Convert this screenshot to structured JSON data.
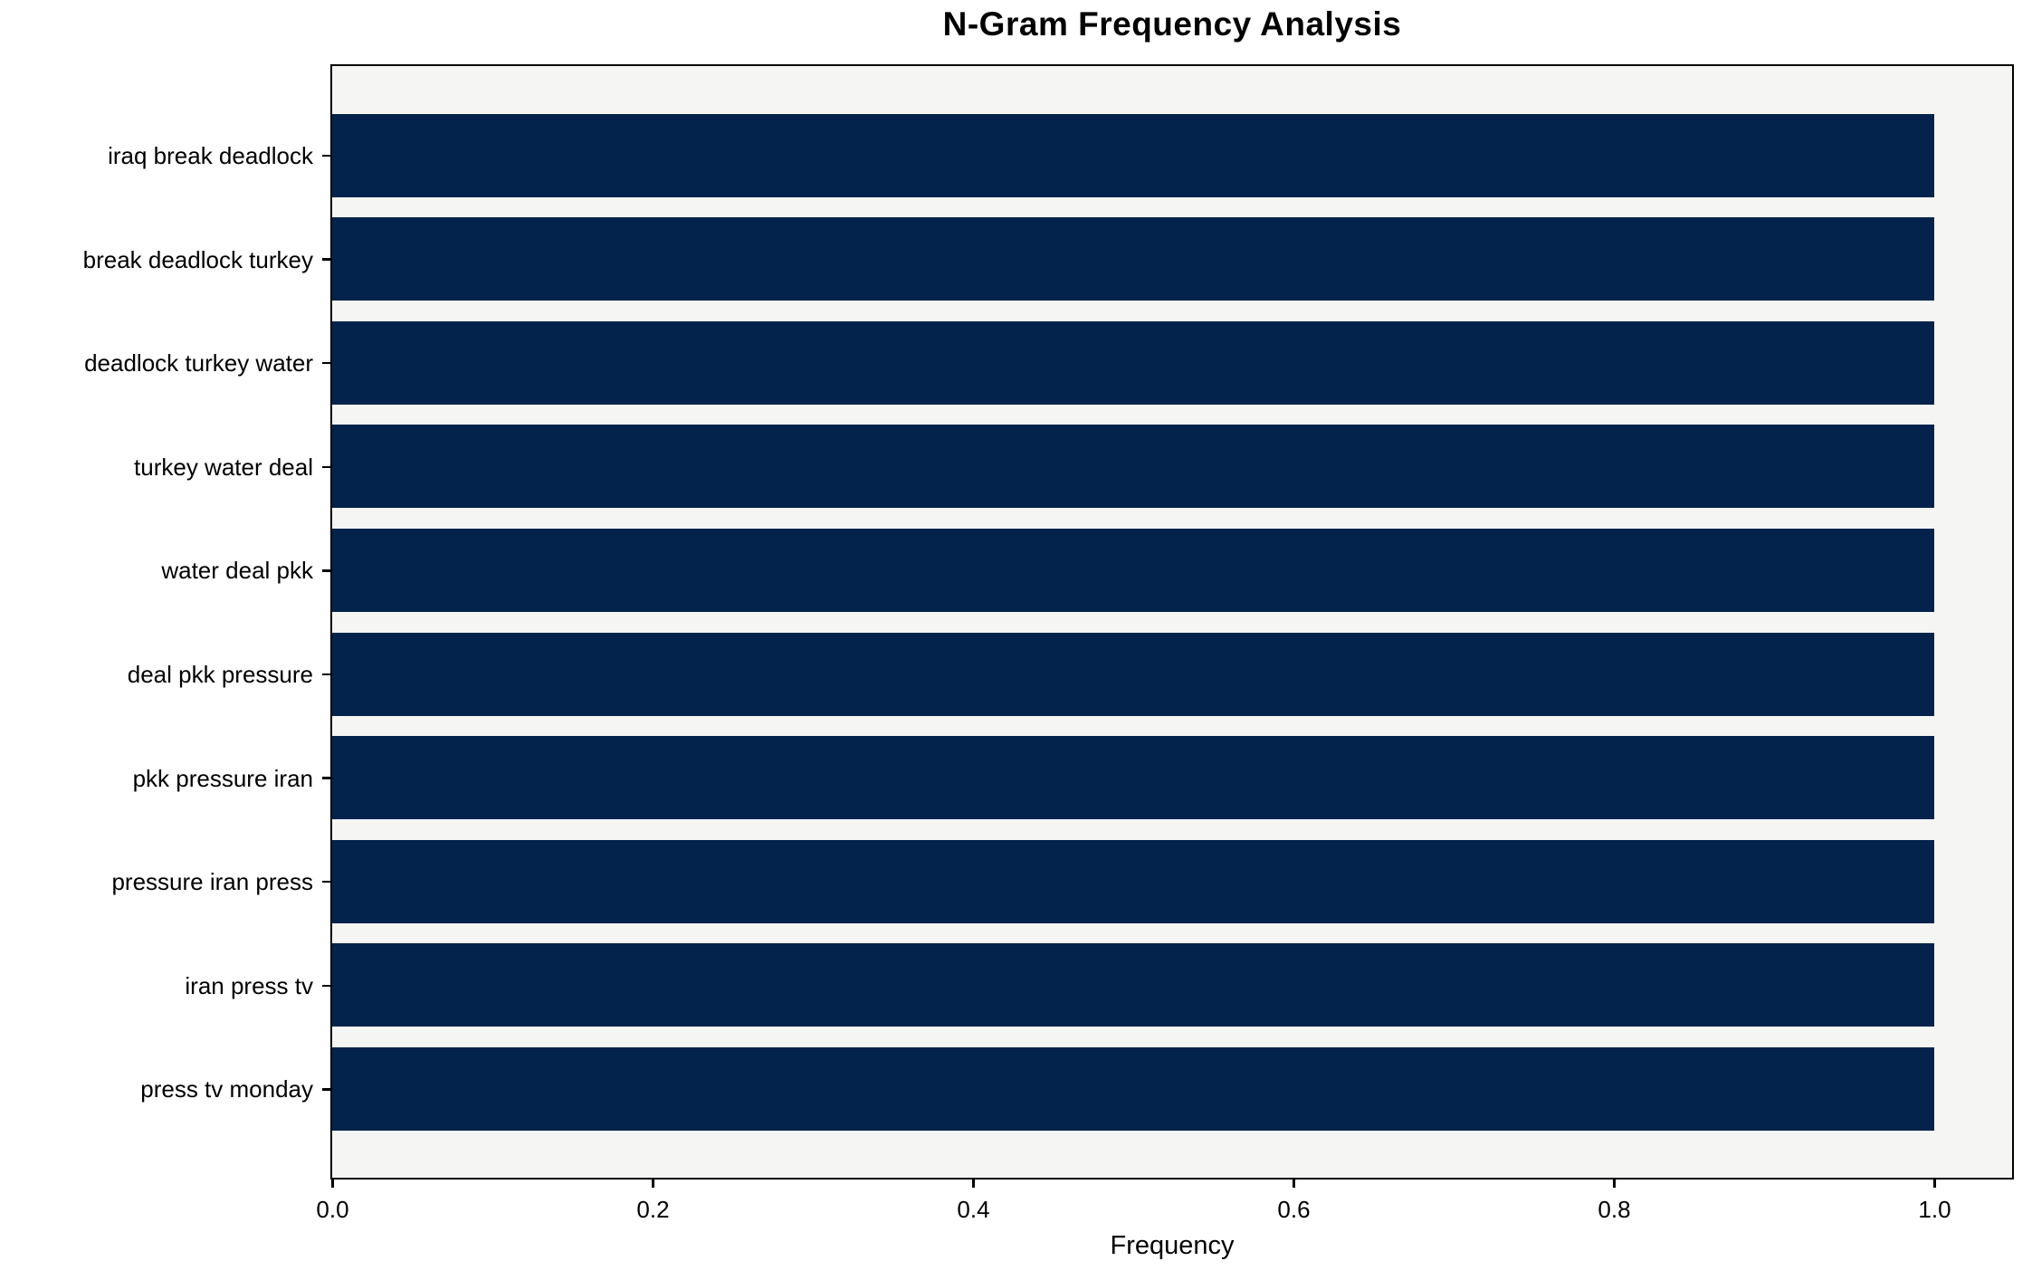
{
  "chart_data": {
    "type": "bar",
    "orientation": "horizontal",
    "title": "N-Gram Frequency Analysis",
    "xlabel": "Frequency",
    "ylabel": "",
    "categories": [
      "iraq break deadlock",
      "break deadlock turkey",
      "deadlock turkey water",
      "turkey water deal",
      "water deal pkk",
      "deal pkk pressure",
      "pkk pressure iran",
      "pressure iran press",
      "iran press tv",
      "press tv monday"
    ],
    "values": [
      1.0,
      1.0,
      1.0,
      1.0,
      1.0,
      1.0,
      1.0,
      1.0,
      1.0,
      1.0
    ],
    "xlim": [
      0.0,
      1.05
    ],
    "xticks": [
      0.0,
      0.2,
      0.4,
      0.6,
      0.8,
      1.0
    ],
    "xtick_labels": [
      "0.0",
      "0.2",
      "0.4",
      "0.6",
      "0.8",
      "1.0"
    ],
    "grid": false,
    "legend": "none",
    "colors": {
      "bar": "#03234c",
      "plot_background": "#f5f5f4",
      "figure_background": "#ffffff",
      "spine": "#000000",
      "text": "#000000"
    }
  }
}
